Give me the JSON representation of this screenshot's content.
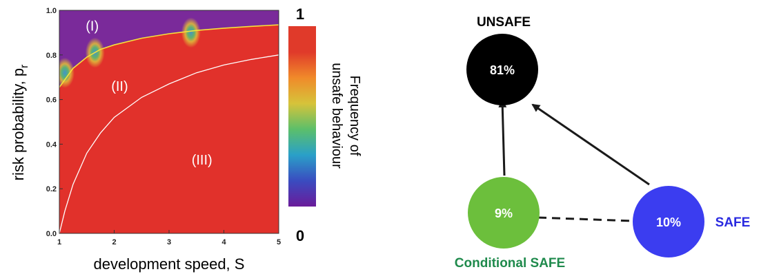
{
  "chart_data": [
    {
      "type": "heatmap",
      "xlabel": "development speed, S",
      "ylabel": "risk probability,  p",
      "ylabel_subscript": "r",
      "xlim": [
        1,
        5
      ],
      "ylim": [
        0,
        1
      ],
      "x_ticks": [
        "1",
        "2",
        "3",
        "4",
        "5"
      ],
      "y_ticks": [
        "0.0",
        "0.2",
        "0.4",
        "0.6",
        "0.8",
        "1.0"
      ],
      "x_tick_values": [
        1,
        2,
        3,
        4,
        5
      ],
      "y_tick_values": [
        0,
        0.2,
        0.4,
        0.6,
        0.8,
        1.0
      ],
      "regions": [
        {
          "label": "(I)",
          "x": 1.6,
          "y": 0.93
        },
        {
          "label": "(II)",
          "x": 2.1,
          "y": 0.66
        },
        {
          "label": "(III)",
          "x": 3.6,
          "y": 0.33
        }
      ],
      "colorbar": {
        "title_line1": "Frequency of",
        "title_line2": "unsafe behaviour",
        "min_label": "0",
        "max_label": "1",
        "colors": [
          "#6a1b9a",
          "#3a4cc0",
          "#2aa0c8",
          "#5cbf6a",
          "#d6c33a",
          "#f08a2a",
          "#e03a2a",
          "#e03a2a"
        ]
      },
      "background_color": "#e1312b",
      "low_region_color": "#7a2a9a",
      "curves": [
        {
          "color": "#f4e23c",
          "points": [
            [
              1,
              0.655
            ],
            [
              1.25,
              0.74
            ],
            [
              1.5,
              0.79
            ],
            [
              1.75,
              0.825
            ],
            [
              2,
              0.845
            ],
            [
              2.5,
              0.875
            ],
            [
              3,
              0.895
            ],
            [
              3.5,
              0.91
            ],
            [
              4,
              0.92
            ],
            [
              4.5,
              0.928
            ],
            [
              5,
              0.935
            ]
          ]
        },
        {
          "color": "#ffffff",
          "points": [
            [
              1,
              0.0
            ],
            [
              1.1,
              0.1
            ],
            [
              1.25,
              0.22
            ],
            [
              1.5,
              0.36
            ],
            [
              1.75,
              0.45
            ],
            [
              2,
              0.52
            ],
            [
              2.5,
              0.61
            ],
            [
              3,
              0.67
            ],
            [
              3.5,
              0.72
            ],
            [
              4,
              0.755
            ],
            [
              4.5,
              0.78
            ],
            [
              5,
              0.8
            ]
          ]
        }
      ],
      "transition_blobs": [
        {
          "x": 1.1,
          "y": 0.72
        },
        {
          "x": 1.65,
          "y": 0.81
        },
        {
          "x": 3.4,
          "y": 0.9
        }
      ]
    }
  ],
  "diagram": {
    "nodes": [
      {
        "id": "unsafe",
        "percent": "81%",
        "label": "UNSAFE",
        "fill": "#000000",
        "label_color": "#000000"
      },
      {
        "id": "conditional",
        "percent": "9%",
        "label": "Conditional SAFE",
        "fill": "#6cbf3c",
        "label_color": "#1f8a4c"
      },
      {
        "id": "safe",
        "percent": "10%",
        "label": "SAFE",
        "fill": "#3b3df0",
        "label_color": "#2a2ae0"
      }
    ],
    "edges": [
      {
        "from": "conditional",
        "to": "unsafe",
        "style": "arrow"
      },
      {
        "from": "safe",
        "to": "unsafe",
        "style": "arrow"
      },
      {
        "from": "conditional",
        "to": "safe",
        "style": "dashed"
      }
    ]
  }
}
